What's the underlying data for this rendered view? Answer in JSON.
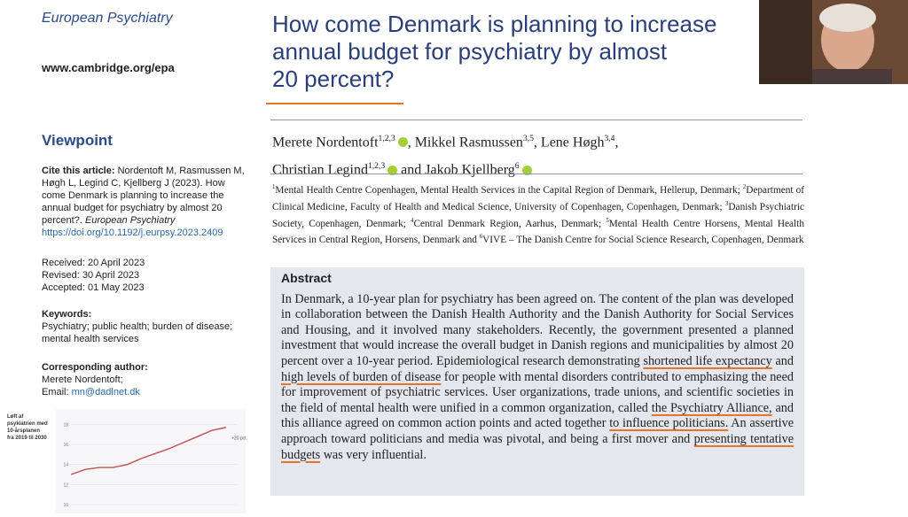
{
  "left": {
    "journal": "European Psychiatry",
    "url": "www.cambridge.org/epa",
    "section": "Viewpoint",
    "cite_label": "Cite this article:",
    "cite_text": "Nordentoft M, Rasmussen M, Høgh L, Legind C, Kjellberg J (2023). How come Denmark is planning to increase the annual budget for psychiatry by almost 20 percent?.",
    "cite_journal": "European Psychiatry",
    "doi": "https://doi.org/10.1192/j.eurpsy.2023.2409",
    "dates": [
      "Received: 20 April 2023",
      "Revised: 30 April 2023",
      "Accepted: 01 May 2023"
    ],
    "keywords_label": "Keywords:",
    "keywords": "Psychiatry; public health; burden of disease; mental health services",
    "corr_label": "Corresponding author:",
    "corr_name": "Merete Nordentoft;",
    "email_label": "Email:",
    "email": "mn@dadlnet.dk"
  },
  "title_lines": [
    "How come Denmark is planning to increase",
    "annual budget for psychiatry by almost",
    "20 percent?"
  ],
  "authors": [
    {
      "name": "Merete Nordentoft",
      "sup": "1,2,3",
      "after": ", "
    },
    {
      "name": "Mikkel Rasmussen",
      "sup": "3,5",
      "after": ", "
    },
    {
      "name": "Lene Høgh",
      "sup": "3,4",
      "after": ","
    },
    {
      "name": "Christian Legind",
      "sup": "1,2,3",
      "after": " and "
    },
    {
      "name": "Jakob Kjellberg",
      "sup": "6",
      "after": ""
    }
  ],
  "affiliations": [
    {
      "sup": "1",
      "text": "Mental Health Centre Copenhagen, Mental Health Services in the Capital Region of Denmark, Hellerup, Denmark; "
    },
    {
      "sup": "2",
      "text": "Department of Clinical Medicine, Faculty of Health and Medical Science, University of Copenhagen, Copenhagen, Denmark; "
    },
    {
      "sup": "3",
      "text": "Danish Psychiatric Society, Copenhagen, Denmark; "
    },
    {
      "sup": "4",
      "text": "Central Denmark Region, Aarhus, Denmark; "
    },
    {
      "sup": "5",
      "text": "Mental Health Centre Horsens, Mental Health Services in Central Region, Horsens, Denmark and "
    },
    {
      "sup": "6",
      "text": "VIVE – The Danish Centre for Social Science Research, Copenhagen, Denmark"
    }
  ],
  "abstract": {
    "heading": "Abstract",
    "segments": [
      {
        "text": "In Denmark, a 10-year plan for psychiatry has been agreed on. The content of the plan was developed in collaboration between the Danish Health Authority and the Danish Authority for Social Services and Housing, and it involved many stakeholders. Recently, the government presented a planned investment that would increase the overall budget in Danish regions and municipalities by almost 20 percent over a 10-year period. Epidemiological research demonstrating ",
        "underline": false
      },
      {
        "text": "shortened life expectancy",
        "underline": true
      },
      {
        "text": " and ",
        "underline": false
      },
      {
        "text": "high levels of burden of disease",
        "underline": true
      },
      {
        "text": " for people with mental disorders contributed to emphasizing the need for improvement of psychiatric services. User organizations, trade unions, and scientific societies in the field of mental health were unified in a common organization, called ",
        "underline": false
      },
      {
        "text": "the Psychiatry Alliance,",
        "underline": true
      },
      {
        "text": " and this alliance agreed on common action points and acted together ",
        "underline": false
      },
      {
        "text": "to influence politicians.",
        "underline": true
      },
      {
        "text": " An assertive approach toward politicians and media was pivotal, and being a first mover and ",
        "underline": false
      },
      {
        "text": "presenting tentative budgets",
        "underline": true
      },
      {
        "text": " was very influential.",
        "underline": false
      }
    ]
  },
  "chart_data": {
    "type": "line",
    "title_lines": [
      "Løft af",
      "psykiatrien med",
      "10-årsplanen",
      "fra 2019 til 2030"
    ],
    "annotation": "+20 pct.",
    "values": [
      13.0,
      13.5,
      13.7,
      13.7,
      14.0,
      14.6,
      15.1,
      15.6,
      16.2,
      16.8,
      17.4,
      17.7
    ],
    "color": "#c0504d",
    "ylim": [
      10,
      19
    ],
    "yticks": [
      10,
      12,
      14,
      16,
      18
    ]
  }
}
